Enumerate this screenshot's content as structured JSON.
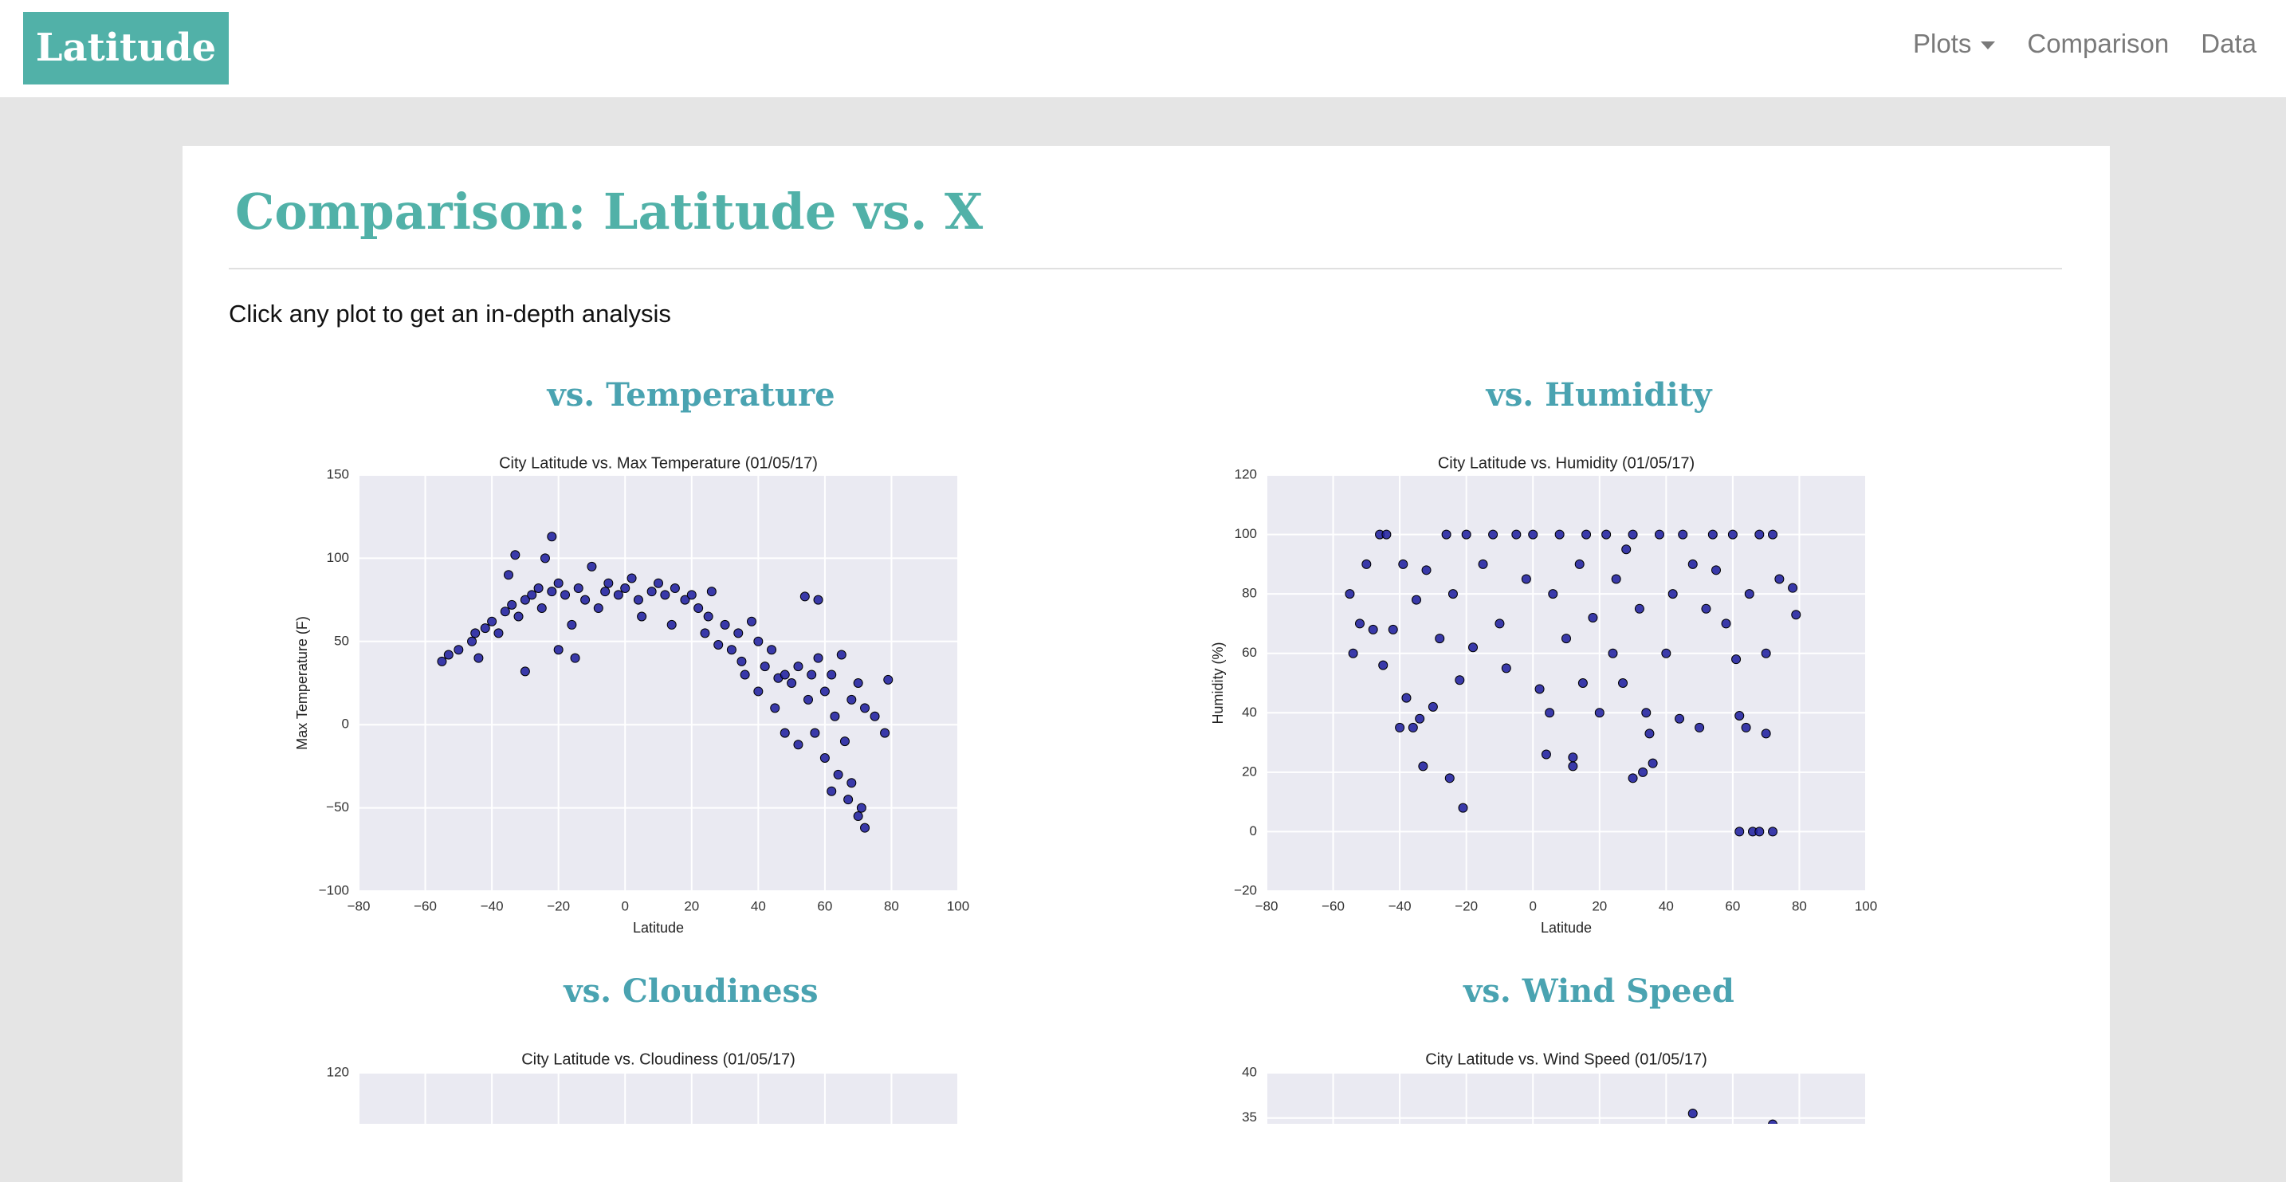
{
  "navbar": {
    "brand": "Latitude",
    "links": [
      "Plots",
      "Comparison",
      "Data"
    ]
  },
  "header": {
    "title": "Comparison: Latitude vs. X",
    "subtitle": "Click any plot to get an in-depth analysis"
  },
  "panels": [
    {
      "heading": "vs. Temperature",
      "chart": {
        "type": "scatter",
        "title": "City Latitude vs. Max Temperature (01/05/17)",
        "x_label": "Latitude",
        "y_label": "Max Temperature (F)",
        "color": "#1a1a9c",
        "grid": true,
        "xlim": [
          -80,
          100
        ],
        "ylim": [
          -100,
          150
        ],
        "xticks": [
          -80,
          -60,
          -40,
          -20,
          0,
          20,
          40,
          60,
          80,
          100
        ],
        "yticks": [
          -100,
          -50,
          0,
          50,
          100,
          150
        ],
        "x": [
          -55,
          -53,
          -50,
          -46,
          -45,
          -44,
          -42,
          -40,
          -38,
          -36,
          -35,
          -34,
          -33,
          -32,
          -30,
          -30,
          -28,
          -26,
          -25,
          -24,
          -22,
          -22,
          -20,
          -20,
          -18,
          -16,
          -15,
          -14,
          -12,
          -10,
          -8,
          -6,
          -5,
          -2,
          0,
          2,
          4,
          5,
          8,
          10,
          12,
          14,
          15,
          18,
          20,
          22,
          24,
          25,
          26,
          28,
          30,
          32,
          34,
          35,
          36,
          38,
          40,
          40,
          42,
          44,
          45,
          46,
          48,
          48,
          50,
          52,
          52,
          54,
          55,
          56,
          57,
          58,
          58,
          60,
          60,
          62,
          62,
          63,
          64,
          65,
          66,
          67,
          68,
          68,
          70,
          70,
          71,
          72,
          72,
          75,
          78,
          79
        ],
        "y": [
          38,
          42,
          45,
          50,
          55,
          40,
          58,
          62,
          55,
          68,
          90,
          72,
          102,
          65,
          75,
          32,
          78,
          82,
          70,
          100,
          113,
          80,
          85,
          45,
          78,
          60,
          40,
          82,
          75,
          95,
          70,
          80,
          85,
          78,
          82,
          88,
          75,
          65,
          80,
          85,
          78,
          60,
          82,
          75,
          78,
          70,
          55,
          65,
          80,
          48,
          60,
          45,
          55,
          38,
          30,
          62,
          50,
          20,
          35,
          45,
          10,
          28,
          30,
          -5,
          25,
          35,
          -12,
          77,
          15,
          30,
          -5,
          75,
          40,
          20,
          -20,
          -40,
          30,
          5,
          -30,
          42,
          -10,
          -45,
          15,
          -35,
          25,
          -55,
          -50,
          -62,
          10,
          5,
          -5,
          27
        ]
      }
    },
    {
      "heading": "vs. Humidity",
      "chart": {
        "type": "scatter",
        "title": "City Latitude vs. Humidity (01/05/17)",
        "x_label": "Latitude",
        "y_label": "Humidity (%)",
        "color": "#1a1a9c",
        "grid": true,
        "xlim": [
          -80,
          100
        ],
        "ylim": [
          -20,
          120
        ],
        "xticks": [
          -80,
          -60,
          -40,
          -20,
          0,
          20,
          40,
          60,
          80,
          100
        ],
        "yticks": [
          -20,
          0,
          20,
          40,
          60,
          80,
          100,
          120
        ],
        "x": [
          -55,
          -54,
          -52,
          -50,
          -48,
          -46,
          -45,
          -44,
          -42,
          -40,
          -39,
          -38,
          -36,
          -35,
          -34,
          -33,
          -32,
          -30,
          -28,
          -26,
          -25,
          -24,
          -22,
          -21,
          -20,
          -18,
          -15,
          -12,
          -10,
          -8,
          -5,
          -2,
          0,
          2,
          4,
          5,
          6,
          8,
          10,
          12,
          12,
          14,
          15,
          16,
          18,
          20,
          22,
          24,
          25,
          27,
          28,
          30,
          30,
          32,
          33,
          34,
          35,
          36,
          38,
          40,
          42,
          44,
          45,
          48,
          50,
          52,
          54,
          55,
          58,
          60,
          61,
          62,
          62,
          64,
          65,
          66,
          68,
          68,
          70,
          70,
          72,
          72,
          74,
          78,
          79
        ],
        "y": [
          80,
          60,
          70,
          90,
          68,
          100,
          56,
          100,
          68,
          35,
          90,
          45,
          35,
          78,
          38,
          22,
          88,
          42,
          65,
          100,
          18,
          80,
          51,
          8,
          100,
          62,
          90,
          100,
          70,
          55,
          100,
          85,
          100,
          48,
          26,
          40,
          80,
          100,
          65,
          22,
          25,
          90,
          50,
          100,
          72,
          40,
          100,
          60,
          85,
          50,
          95,
          18,
          100,
          75,
          20,
          40,
          33,
          23,
          100,
          60,
          80,
          38,
          100,
          90,
          35,
          75,
          100,
          88,
          70,
          100,
          58,
          39,
          0,
          35,
          80,
          0,
          100,
          0,
          33,
          60,
          0,
          100,
          85,
          82,
          73
        ]
      }
    },
    {
      "heading": "vs. Cloudiness",
      "chart": {
        "type": "scatter",
        "title": "City Latitude vs. Cloudiness (01/05/17)",
        "color": "#1a1a9c",
        "grid": true,
        "yticks": [
          120
        ],
        "x": [],
        "y": []
      }
    },
    {
      "heading": "vs. Wind Speed",
      "chart": {
        "type": "scatter",
        "title": "City Latitude vs. Wind Speed (01/05/17)",
        "color": "#1a1a9c",
        "grid": true,
        "yticks": [
          40,
          35
        ],
        "x": [
          48,
          72
        ],
        "y": [
          35.5,
          34.3
        ]
      }
    }
  ]
}
